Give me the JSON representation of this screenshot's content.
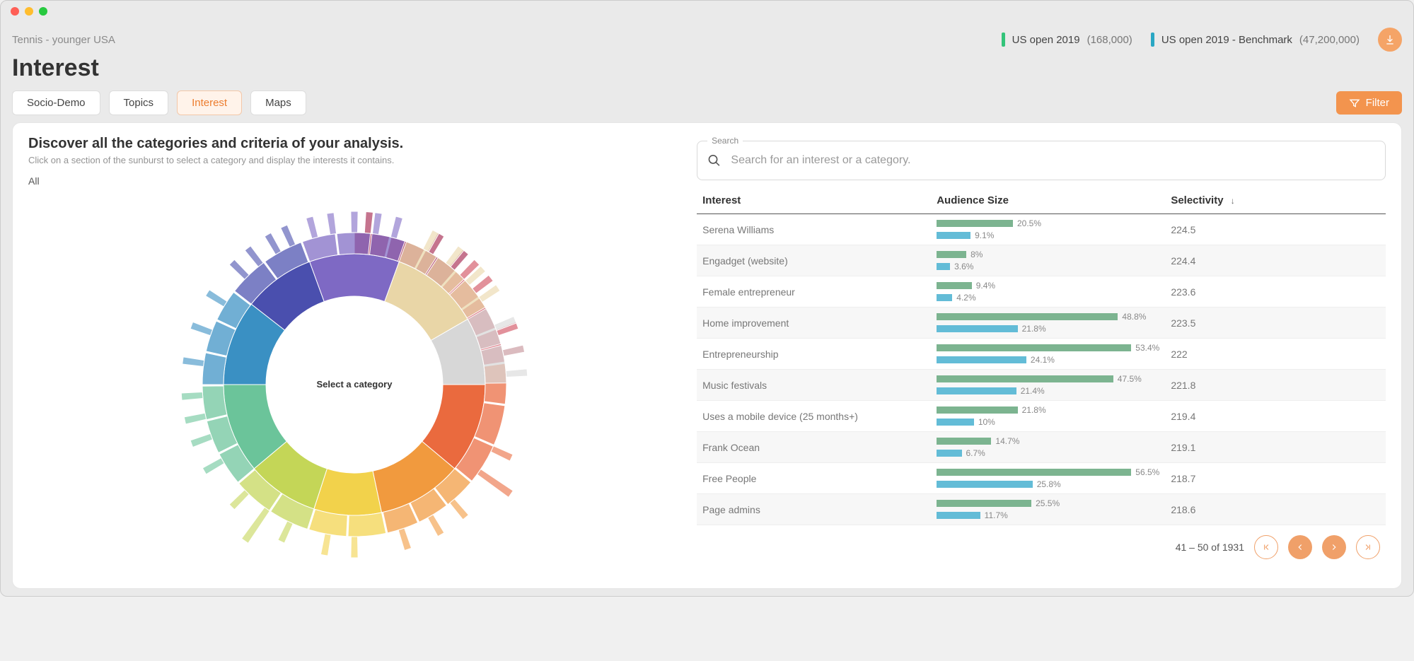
{
  "header": {
    "breadcrumb": "Tennis - younger USA",
    "title": "Interest",
    "legend": [
      {
        "swatch": "#33c47a",
        "label": "US open 2019",
        "count": "(168,000)"
      },
      {
        "swatch": "#2aa7c4",
        "label": "US open 2019 - Benchmark",
        "count": "(47,200,000)"
      }
    ]
  },
  "tabs": {
    "items": [
      "Socio-Demo",
      "Topics",
      "Interest",
      "Maps"
    ],
    "active_index": 2,
    "filter_label": "Filter"
  },
  "left": {
    "title": "Discover all the categories and criteria of your analysis.",
    "subtitle": "Click on a section of the sunburst to select a category and display the interests it contains.",
    "all_label": "All",
    "center_label": "Select a category",
    "sunburst": {
      "inner_radius": 125,
      "ring1_outer": 185,
      "ring2_outer": 215,
      "spike_len": 30,
      "segments": [
        {
          "start": -90,
          "end": -48,
          "color": "#9e1842",
          "spikes": 3,
          "spike_pos": [
            -85,
            -60,
            -50
          ]
        },
        {
          "start": -48,
          "end": -8,
          "color": "#cf4858",
          "spikes": 4,
          "spike_pos": [
            -45,
            -38,
            -20,
            -12
          ]
        },
        {
          "start": -8,
          "end": 40,
          "color": "#ea6a3e",
          "spikes": 2,
          "spike_pos": [
            25,
            35
          ],
          "long_spike": 35
        },
        {
          "start": 40,
          "end": 78,
          "color": "#f19a3e",
          "spikes": 3,
          "spike_pos": [
            50,
            60,
            72
          ]
        },
        {
          "start": 78,
          "end": 108,
          "color": "#f2d24b",
          "spikes": 2,
          "spike_pos": [
            90,
            100
          ]
        },
        {
          "start": 108,
          "end": 140,
          "color": "#c4d657",
          "spikes": 3,
          "spike_pos": [
            115,
            125,
            135
          ],
          "long_spike": 125
        },
        {
          "start": 140,
          "end": 180,
          "color": "#6bc49a",
          "spikes": 4,
          "spike_pos": [
            150,
            160,
            168,
            176
          ]
        },
        {
          "start": 180,
          "end": 218,
          "color": "#3a90c3",
          "spikes": 3,
          "spike_pos": [
            188,
            200,
            212
          ]
        },
        {
          "start": 218,
          "end": 250,
          "color": "#4a4fae",
          "spikes": 4,
          "spike_pos": [
            225,
            232,
            240,
            246
          ]
        },
        {
          "start": 250,
          "end": 290,
          "color": "#7e69c4",
          "spikes": 5,
          "spike_pos": [
            255,
            262,
            270,
            278,
            285
          ]
        },
        {
          "start": 290,
          "end": 330,
          "color": "#e9d6a7",
          "spikes": 4,
          "spike_pos": [
            298,
            308,
            318,
            326
          ]
        },
        {
          "start": 330,
          "end": 360,
          "color": "#d7d7d7",
          "spikes": 3,
          "spike_pos": [
            338,
            348,
            356
          ]
        },
        {
          "start": 360,
          "end": 390,
          "color_override_hidden": true,
          "color": "#d7d7d7",
          "spikes": 0,
          "spike_pos": []
        }
      ]
    }
  },
  "right": {
    "search_legend": "Search",
    "search_placeholder": "Search for an interest or a category.",
    "columns": {
      "interest": "Interest",
      "size": "Audience Size",
      "selectivity": "Selectivity"
    },
    "bar_colors": {
      "primary": "#7cb490",
      "benchmark": "#63bcd7"
    },
    "bar_max_percent": 60,
    "rows": [
      {
        "interest": "Serena Williams",
        "p1": 20.5,
        "p2": 9.1,
        "sel": "224.5"
      },
      {
        "interest": "Engadget (website)",
        "p1": 8.0,
        "p2": 3.6,
        "sel": "224.4"
      },
      {
        "interest": "Female entrepreneur",
        "p1": 9.4,
        "p2": 4.2,
        "sel": "223.6"
      },
      {
        "interest": "Home improvement",
        "p1": 48.8,
        "p2": 21.8,
        "sel": "223.5"
      },
      {
        "interest": "Entrepreneurship",
        "p1": 53.4,
        "p2": 24.1,
        "sel": "222"
      },
      {
        "interest": "Music festivals",
        "p1": 47.5,
        "p2": 21.4,
        "sel": "221.8"
      },
      {
        "interest": "Uses a mobile device (25 months+)",
        "p1": 21.8,
        "p2": 10.0,
        "sel": "219.4"
      },
      {
        "interest": "Frank Ocean",
        "p1": 14.7,
        "p2": 6.7,
        "sel": "219.1"
      },
      {
        "interest": "Free People",
        "p1": 56.5,
        "p2": 25.8,
        "sel": "218.7"
      },
      {
        "interest": "Page admins",
        "p1": 25.5,
        "p2": 11.7,
        "sel": "218.6"
      }
    ],
    "paginator": {
      "range": "41 – 50 of 1931"
    }
  }
}
